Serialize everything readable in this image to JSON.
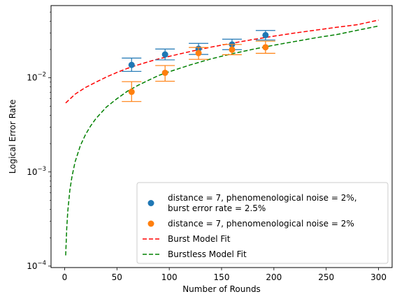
{
  "chart_data": {
    "type": "scatter",
    "title": "",
    "xlabel": "Number of Rounds",
    "ylabel": "Logical Error Rate",
    "xlim": [
      -13,
      313
    ],
    "ylim": [
      9.65e-05,
      0.0585
    ],
    "yscale": "log",
    "grid": false,
    "legend_position": "lower-right",
    "x_ticks": [
      0,
      50,
      100,
      150,
      200,
      250,
      300
    ],
    "x_tick_labels": [
      "0",
      "50",
      "100",
      "150",
      "200",
      "250",
      "300"
    ],
    "y_ticks": [
      {
        "value": 0.0001,
        "base": "10",
        "exp": "−4"
      },
      {
        "value": 0.001,
        "base": "10",
        "exp": "−3"
      },
      {
        "value": 0.01,
        "base": "10",
        "exp": "−2"
      }
    ],
    "series": [
      {
        "name": "distance = 7, phenomenological noise = 2%,\nburst error rate = 2.5%",
        "legend_lines": [
          "distance = 7, phenomenological noise = 2%,",
          "burst error rate = 2.5%"
        ],
        "kind": "errorbar",
        "color": "#1f77b4",
        "x": [
          64,
          96,
          128,
          160,
          192
        ],
        "y": [
          0.0137,
          0.0177,
          0.0204,
          0.0226,
          0.0284
        ],
        "y_low": [
          0.0117,
          0.0155,
          0.0177,
          0.0199,
          0.0252
        ],
        "y_high": [
          0.0162,
          0.0202,
          0.0232,
          0.0257,
          0.0318
        ]
      },
      {
        "name": "distance = 7, phenomenological noise = 2%",
        "legend_lines": [
          "distance = 7, phenomenological noise = 2%"
        ],
        "kind": "errorbar",
        "color": "#ff7f0e",
        "x": [
          64,
          96,
          128,
          160,
          192
        ],
        "y": [
          0.0071,
          0.0113,
          0.0183,
          0.0199,
          0.0211
        ],
        "y_low": [
          0.0056,
          0.0092,
          0.0157,
          0.0176,
          0.0182
        ],
        "y_high": [
          0.0091,
          0.0135,
          0.021,
          0.0226,
          0.0245
        ]
      },
      {
        "name": "Burst Model Fit",
        "legend_lines": [
          "Burst Model Fit"
        ],
        "kind": "line",
        "color": "#ff0000",
        "dash": "6,3",
        "x": [
          1,
          10,
          20,
          30,
          40,
          50,
          60,
          70,
          80,
          90,
          100,
          120,
          140,
          160,
          180,
          200,
          220,
          240,
          260,
          280,
          300
        ],
        "y": [
          0.0054,
          0.0067,
          0.0079,
          0.009,
          0.0102,
          0.0114,
          0.0126,
          0.0137,
          0.0148,
          0.0159,
          0.0169,
          0.019,
          0.0212,
          0.0233,
          0.0255,
          0.0277,
          0.0299,
          0.0321,
          0.0344,
          0.0367,
          0.041
        ]
      },
      {
        "name": "Burstless Model Fit",
        "legend_lines": [
          "Burstless Model Fit"
        ],
        "kind": "line",
        "color": "#008000",
        "dash": "6,3",
        "x": [
          1,
          2,
          3,
          5,
          7,
          10,
          15,
          20,
          25,
          30,
          40,
          50,
          60,
          70,
          80,
          90,
          100,
          120,
          140,
          160,
          180,
          200,
          220,
          240,
          260,
          280,
          300
        ],
        "y": [
          0.00013,
          0.00025,
          0.00038,
          0.00064,
          0.00089,
          0.00128,
          0.0019,
          0.0025,
          0.0031,
          0.0037,
          0.0049,
          0.006,
          0.0072,
          0.0083,
          0.0094,
          0.0106,
          0.0116,
          0.0137,
          0.0159,
          0.018,
          0.0201,
          0.0222,
          0.0243,
          0.0266,
          0.0288,
          0.032,
          0.0355
        ]
      }
    ]
  }
}
